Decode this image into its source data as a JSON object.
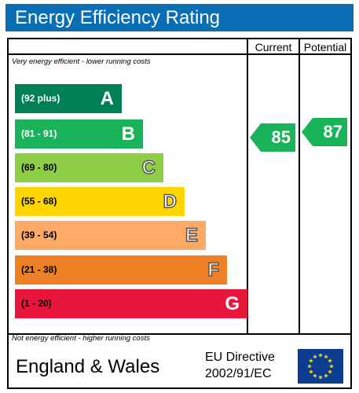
{
  "header": {
    "title": "Energy Efficiency Rating"
  },
  "columns": {
    "current": "Current",
    "potential": "Potential"
  },
  "notes": {
    "top": "Very energy efficient - lower running costs",
    "bottom": "Not energy efficient - higher running costs"
  },
  "bands": [
    {
      "range": "(92 plus)",
      "letter": "A",
      "color": "#008054",
      "range_color": "#ffffff",
      "outline": false
    },
    {
      "range": "(81 - 91)",
      "letter": "B",
      "color": "#19b459",
      "range_color": "#ffffff",
      "outline": false
    },
    {
      "range": "(69 - 80)",
      "letter": "C",
      "color": "#8dce46",
      "range_color": "#000000",
      "outline": true
    },
    {
      "range": "(55 - 68)",
      "letter": "D",
      "color": "#ffd500",
      "range_color": "#000000",
      "outline": true
    },
    {
      "range": "(39 - 54)",
      "letter": "E",
      "color": "#fcaa65",
      "range_color": "#000000",
      "outline": true
    },
    {
      "range": "(21 - 38)",
      "letter": "F",
      "color": "#ef8023",
      "range_color": "#000000",
      "outline": true
    },
    {
      "range": "(1 - 20)",
      "letter": "G",
      "color": "#e9153b",
      "range_color": "#000000",
      "outline": false
    }
  ],
  "ratings": {
    "current": {
      "value": "85",
      "band": "B",
      "color": "#19b459"
    },
    "potential": {
      "value": "87",
      "band": "B",
      "color": "#19b459"
    }
  },
  "footer": {
    "country": "England & Wales",
    "directive_line1": "EU Directive",
    "directive_line2": "2002/91/EC",
    "flag_color": "#0c3d91",
    "star_color": "#ffdd00"
  }
}
